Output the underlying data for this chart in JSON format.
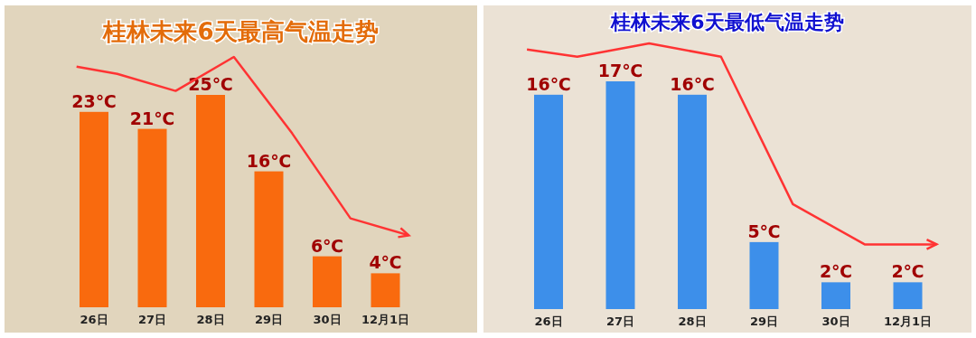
{
  "chart_data": [
    {
      "type": "bar",
      "title": "桂林未来6天最高气温走势",
      "categories": [
        "26日",
        "27日",
        "28日",
        "29日",
        "30日",
        "12月1日"
      ],
      "values": [
        23,
        21,
        25,
        16,
        6,
        4
      ],
      "value_labels": [
        "23℃",
        "21℃",
        "25℃",
        "16℃",
        "6℃",
        "4℃"
      ],
      "color": "#f96a0e"
    },
    {
      "type": "bar",
      "title": "桂林未来6天最低气温走势",
      "categories": [
        "26日",
        "27日",
        "28日",
        "29日",
        "30日",
        "12月1日"
      ],
      "values": [
        16,
        17,
        16,
        5,
        2,
        2
      ],
      "value_labels": [
        "16℃",
        "17℃",
        "16℃",
        "5℃",
        "2℃",
        "2℃"
      ],
      "color": "#3d8fea"
    }
  ]
}
